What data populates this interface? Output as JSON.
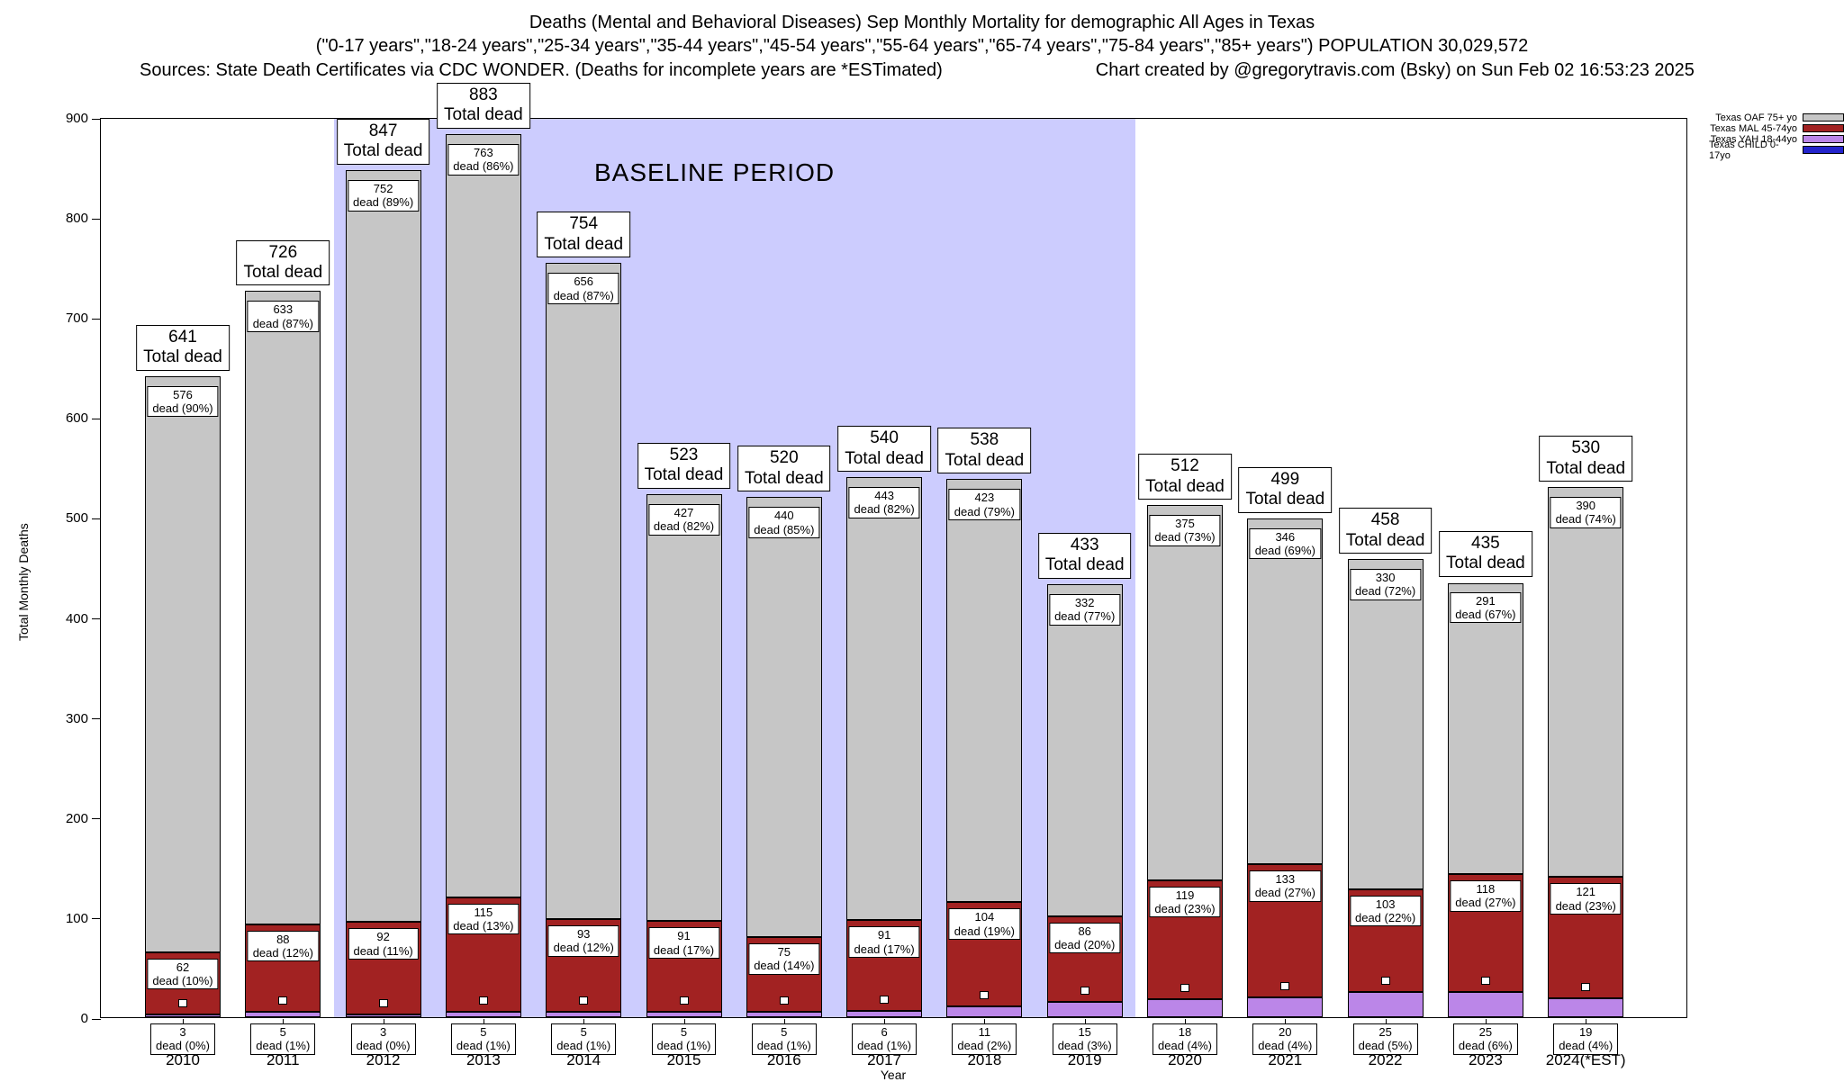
{
  "header": {
    "title_line1": "Deaths (Mental and Behavioral Diseases) Sep Monthly Mortality for demographic All Ages in Texas",
    "title_line2": "(\"0-17 years\",\"18-24 years\",\"25-34 years\",\"35-44 years\",\"45-54 years\",\"55-64 years\",\"65-74 years\",\"75-84 years\",\"85+ years\") POPULATION 30,029,572",
    "title_line3_left": "Sources: State Death Certificates via CDC WONDER. (Deaths for incomplete years are *ESTimated)",
    "title_line3_right": "Chart created by @gregorytravis.com (Bsky) on Sun Feb 02 16:53:23 2025"
  },
  "chart_data": {
    "type": "bar",
    "stacked": true,
    "title": "Deaths (Mental and Behavioral Diseases) Sep Monthly Mortality for demographic All Ages in Texas",
    "xlabel": "Year",
    "ylabel": "Total Monthly Deaths",
    "ylim": [
      0,
      900
    ],
    "ytick_step": 100,
    "grid": false,
    "legend_position": "top-right",
    "baseline_label": "BASELINE PERIOD",
    "baseline_span_years": [
      "2012",
      "2019"
    ],
    "baseline_color": "#ccccfe",
    "legend": [
      {
        "label": "Texas OAF 75+ yo",
        "color": "#c6c6c6"
      },
      {
        "label": "Texas MAL 45-74yo",
        "color": "#a22222"
      },
      {
        "label": "Texas YAH 18-44yo",
        "color": "#bb86e8"
      },
      {
        "label": "Texas CHILD 0-17yo",
        "color": "#2424cc"
      }
    ],
    "categories": [
      "2010",
      "2011",
      "2012",
      "2013",
      "2014",
      "2015",
      "2016",
      "2017",
      "2018",
      "2019",
      "2020",
      "2021",
      "2022",
      "2023",
      "2024(*EST)"
    ],
    "bars": [
      {
        "year": "2010",
        "total": 641,
        "total_label": "Total dead",
        "oaf": 576,
        "oaf_label": "dead (90%)",
        "mal": 62,
        "mal_label": "dead (10%)",
        "yah": 3,
        "yah_label": "dead (0%)"
      },
      {
        "year": "2011",
        "total": 726,
        "total_label": "Total dead",
        "oaf": 633,
        "oaf_label": "dead (87%)",
        "mal": 88,
        "mal_label": "dead (12%)",
        "yah": 5,
        "yah_label": "dead (1%)"
      },
      {
        "year": "2012",
        "total": 847,
        "total_label": "Total dead",
        "oaf": 752,
        "oaf_label": "dead (89%)",
        "mal": 92,
        "mal_label": "dead (11%)",
        "yah": 3,
        "yah_label": "dead (0%)"
      },
      {
        "year": "2013",
        "total": 883,
        "total_label": "Total dead",
        "oaf": 763,
        "oaf_label": "dead (86%)",
        "mal": 115,
        "mal_label": "dead (13%)",
        "yah": 5,
        "yah_label": "dead (1%)"
      },
      {
        "year": "2014",
        "total": 754,
        "total_label": "Total dead",
        "oaf": 656,
        "oaf_label": "dead (87%)",
        "mal": 93,
        "mal_label": "dead (12%)",
        "yah": 5,
        "yah_label": "dead (1%)"
      },
      {
        "year": "2015",
        "total": 523,
        "total_label": "Total dead",
        "oaf": 427,
        "oaf_label": "dead (82%)",
        "mal": 91,
        "mal_label": "dead (17%)",
        "yah": 5,
        "yah_label": "dead (1%)"
      },
      {
        "year": "2016",
        "total": 520,
        "total_label": "Total dead",
        "oaf": 440,
        "oaf_label": "dead (85%)",
        "mal": 75,
        "mal_label": "dead (14%)",
        "yah": 5,
        "yah_label": "dead (1%)"
      },
      {
        "year": "2017",
        "total": 540,
        "total_label": "Total dead",
        "oaf": 443,
        "oaf_label": "dead (82%)",
        "mal": 91,
        "mal_label": "dead (17%)",
        "yah": 6,
        "yah_label": "dead (1%)"
      },
      {
        "year": "2018",
        "total": 538,
        "total_label": "Total dead",
        "oaf": 423,
        "oaf_label": "dead (79%)",
        "mal": 104,
        "mal_label": "dead (19%)",
        "yah": 11,
        "yah_label": "dead (2%)"
      },
      {
        "year": "2019",
        "total": 433,
        "total_label": "Total dead",
        "oaf": 332,
        "oaf_label": "dead (77%)",
        "mal": 86,
        "mal_label": "dead (20%)",
        "yah": 15,
        "yah_label": "dead (3%)"
      },
      {
        "year": "2020",
        "total": 512,
        "total_label": "Total dead",
        "oaf": 375,
        "oaf_label": "dead (73%)",
        "mal": 119,
        "mal_label": "dead (23%)",
        "yah": 18,
        "yah_label": "dead (4%)"
      },
      {
        "year": "2021",
        "total": 499,
        "total_label": "Total dead",
        "oaf": 346,
        "oaf_label": "dead (69%)",
        "mal": 133,
        "mal_label": "dead (27%)",
        "yah": 20,
        "yah_label": "dead (4%)"
      },
      {
        "year": "2022",
        "total": 458,
        "total_label": "Total dead",
        "oaf": 330,
        "oaf_label": "dead (72%)",
        "mal": 103,
        "mal_label": "dead (22%)",
        "yah": 25,
        "yah_label": "dead (5%)"
      },
      {
        "year": "2023",
        "total": 435,
        "total_label": "Total dead",
        "oaf": 291,
        "oaf_label": "dead (67%)",
        "mal": 118,
        "mal_label": "dead (27%)",
        "yah": 25,
        "yah_label": "dead (6%)"
      },
      {
        "year": "2024(*EST)",
        "total": 530,
        "total_label": "Total dead",
        "oaf": 390,
        "oaf_label": "dead (74%)",
        "mal": 121,
        "mal_label": "dead (23%)",
        "yah": 19,
        "yah_label": "dead (4%)"
      }
    ]
  }
}
